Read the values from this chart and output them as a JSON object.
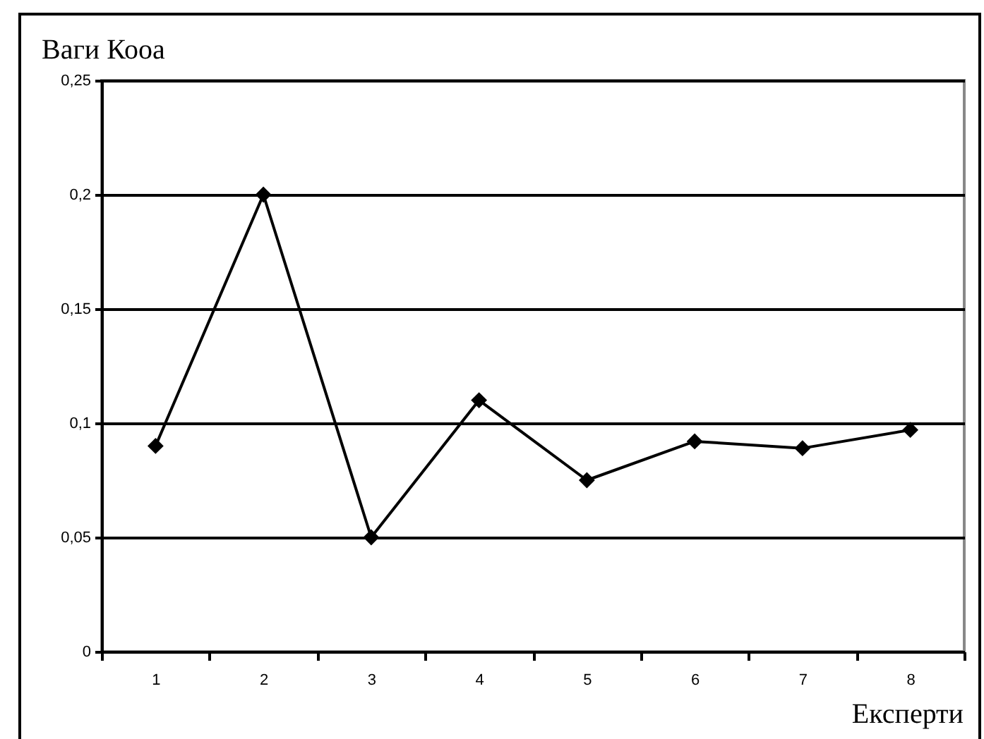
{
  "chart_data": {
    "type": "line",
    "ylabel": "Ваги Кооа",
    "xlabel": "Експерти",
    "categories": [
      "1",
      "2",
      "3",
      "4",
      "5",
      "6",
      "7",
      "8"
    ],
    "series": [
      {
        "color": "#000000",
        "values": [
          0.09,
          0.2,
          0.05,
          0.11,
          0.075,
          0.092,
          0.089,
          0.097
        ]
      }
    ],
    "ylim": [
      0,
      0.25
    ],
    "yticks": [
      {
        "value": 0,
        "label": "0"
      },
      {
        "value": 0.05,
        "label": "0,05"
      },
      {
        "value": 0.1,
        "label": "0,1"
      },
      {
        "value": 0.15,
        "label": "0,15"
      },
      {
        "value": 0.2,
        "label": "0,2"
      },
      {
        "value": 0.25,
        "label": "0,25"
      }
    ],
    "grid": "y",
    "marker": "diamond",
    "line_style": "solid"
  }
}
